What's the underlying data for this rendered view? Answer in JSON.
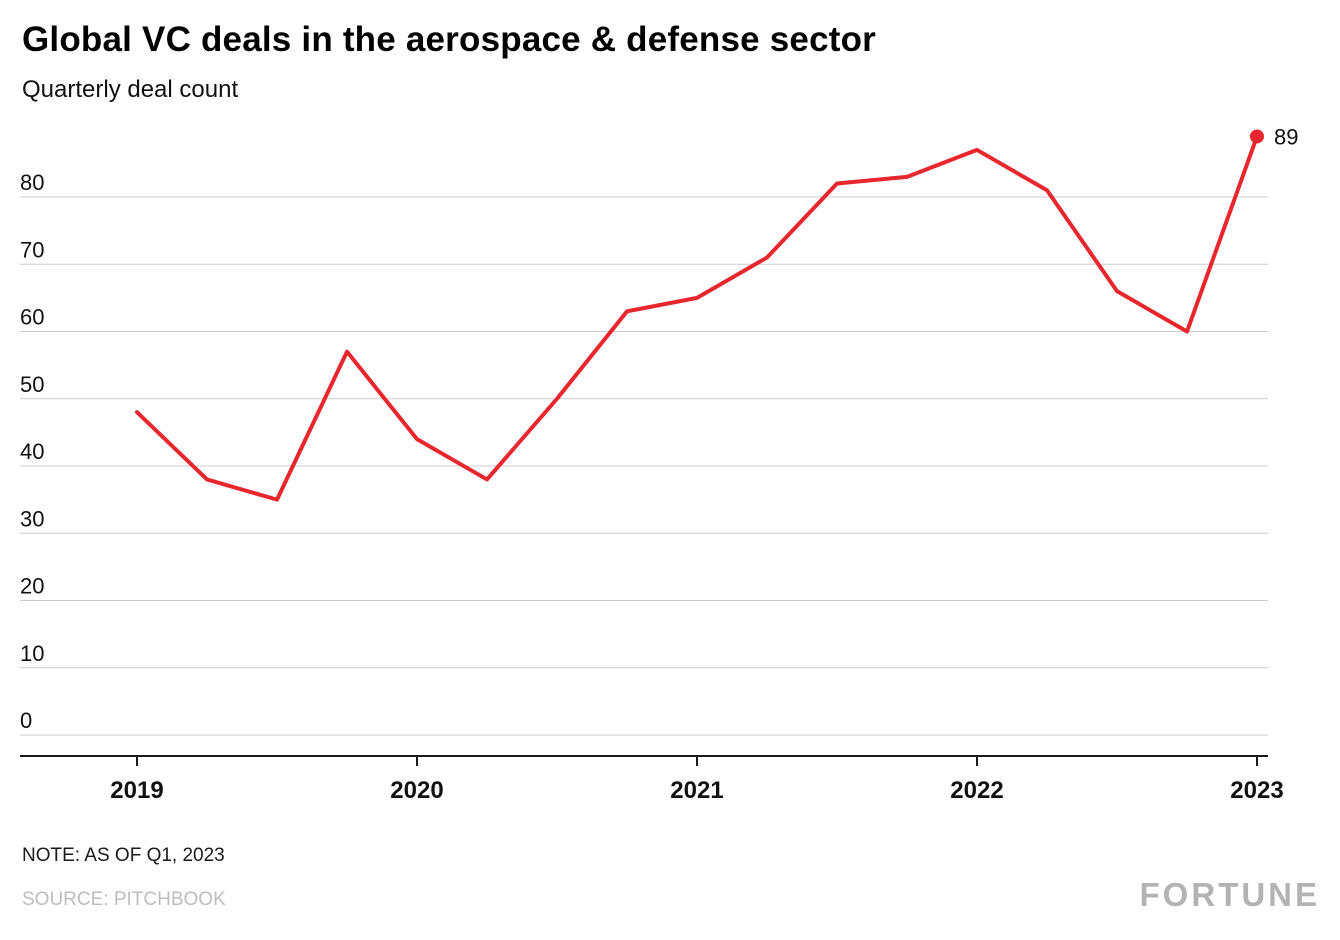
{
  "header": {
    "title": "Global VC deals in the aerospace & defense sector",
    "subtitle": "Quarterly deal count"
  },
  "chart_data": {
    "type": "line",
    "categories": [
      "Q1 2019",
      "Q2 2019",
      "Q3 2019",
      "Q4 2019",
      "Q1 2020",
      "Q2 2020",
      "Q3 2020",
      "Q4 2020",
      "Q1 2021",
      "Q2 2021",
      "Q3 2021",
      "Q4 2021",
      "Q1 2022",
      "Q2 2022",
      "Q3 2022",
      "Q4 2022",
      "Q1 2023"
    ],
    "values": [
      48,
      38,
      35,
      57,
      44,
      38,
      50,
      63,
      65,
      71,
      82,
      83,
      87,
      81,
      66,
      60,
      89
    ],
    "title": "Global VC deals in the aerospace & defense sector",
    "subtitle": "Quarterly deal count",
    "xlabel": "",
    "ylabel": "",
    "ylim": [
      0,
      90
    ],
    "y_ticks": [
      0,
      10,
      20,
      30,
      40,
      50,
      60,
      70,
      80
    ],
    "x_year_ticks": [
      {
        "label": "2019",
        "index": 0
      },
      {
        "label": "2020",
        "index": 4
      },
      {
        "label": "2021",
        "index": 8
      },
      {
        "label": "2022",
        "index": 12
      },
      {
        "label": "2023",
        "index": 16
      }
    ],
    "grid": true,
    "legend": "none",
    "end_point_label": "89"
  },
  "colors": {
    "line": "#e8262d",
    "grid": "#cccccc",
    "axis": "#1a1a1a",
    "text": "#111111",
    "muted": "#bdbdbd"
  },
  "footer": {
    "note": "NOTE: AS OF Q1, 2023",
    "source": "SOURCE: PITCHBOOK",
    "brand": "FORTUNE"
  }
}
